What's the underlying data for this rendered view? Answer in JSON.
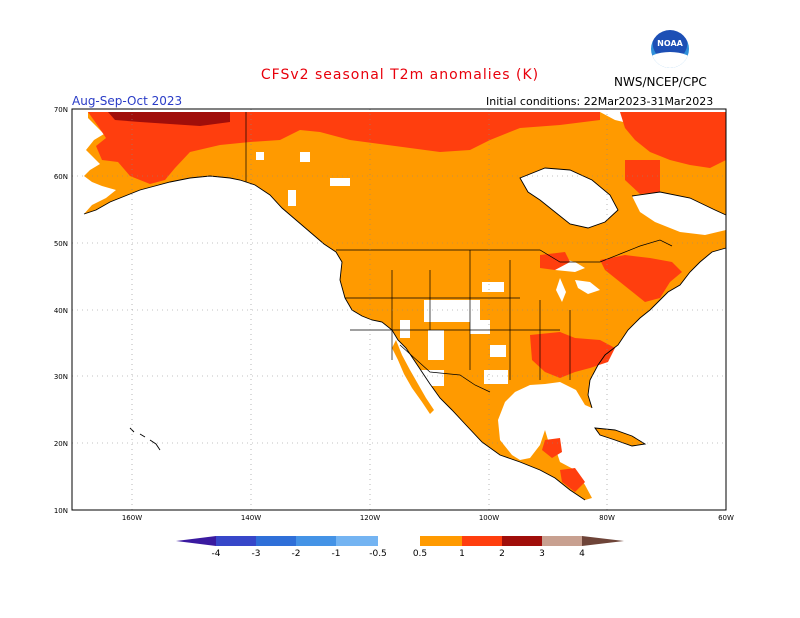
{
  "header": {
    "title": "CFSv2 seasonal T2m anomalies (K)",
    "period": "Aug-Sep-Oct 2023",
    "initial_conditions": "Initial conditions: 22Mar2023-31Mar2023",
    "agency": "NWS/NCEP/CPC",
    "logo_text": "NOAA"
  },
  "map": {
    "lat_labels": [
      "70N",
      "60N",
      "50N",
      "40N",
      "30N",
      "20N",
      "10N"
    ],
    "lon_labels": [
      "160W",
      "140W",
      "120W",
      "100W",
      "80W",
      "60W"
    ],
    "colors": {
      "ocean": "#ffffff",
      "anom_05_1": "#ff9a00",
      "anom_1_2": "#ff3e0e",
      "anom_2_3": "#a00e0a",
      "no_anomaly": "#ffffff"
    }
  },
  "colorbar": {
    "labels": [
      "-4",
      "-3",
      "-2",
      "-1",
      "-0.5",
      "0.5",
      "1",
      "2",
      "3",
      "4"
    ],
    "colors": [
      "#3a1aa0",
      "#3747c9",
      "#2f6fd8",
      "#4493e6",
      "#74b4f2",
      "#ffffff",
      "#ff9a00",
      "#ff3e0e",
      "#a00e0a",
      "#c8a090",
      "#6e4438"
    ]
  }
}
